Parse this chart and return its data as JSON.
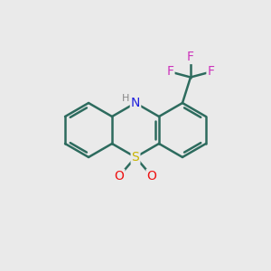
{
  "bg_color": "#eaeaea",
  "bond_color": "#2d6b5e",
  "bond_width": 1.8,
  "atom_colors": {
    "S": "#c8b400",
    "N": "#2020dd",
    "O": "#ee1111",
    "F": "#cc33bb",
    "C": "#2d6b5e",
    "H": "#888888"
  },
  "figsize": [
    3.0,
    3.0
  ],
  "dpi": 100,
  "xlim": [
    0,
    10
  ],
  "ylim": [
    0,
    10
  ]
}
